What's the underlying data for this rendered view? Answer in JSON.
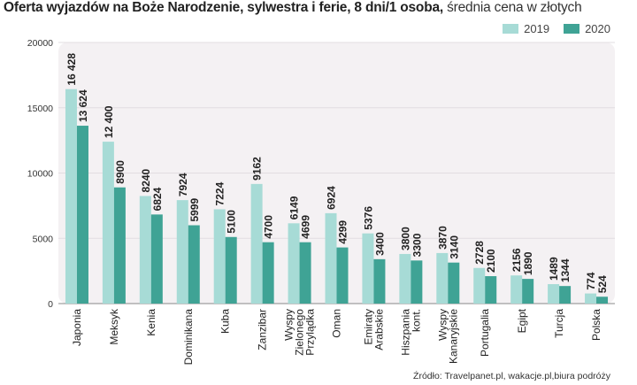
{
  "title_bold": "Oferta wyjazdów na Boże Narodzenie, sylwestra i ferie, 8 dni/1 osoba,",
  "title_regular": " średnia cena w złotych",
  "source": "Źródło: Travelpanet.pl, wakacje.pl,biura podróży",
  "colors": {
    "s2019": "#a7dbd6",
    "s2020": "#3fa395",
    "plot_bg": "#f4f1f3"
  },
  "chart_data": {
    "type": "bar",
    "categories": [
      "Japonia",
      "Meksyk",
      "Kenia",
      "Dominikana",
      "Kuba",
      "Zanzibar",
      "Wyspy Zielonego Przylądka",
      "Oman",
      "Emiraty Arabskie",
      "Hiszpania kont.",
      "Wyspy Kanaryjskie",
      "Portugalia",
      "Egipt",
      "Turcja",
      "Polska"
    ],
    "category_lines": [
      [
        "Japonia"
      ],
      [
        "Meksyk"
      ],
      [
        "Kenia"
      ],
      [
        "Dominikana"
      ],
      [
        "Kuba"
      ],
      [
        "Zanzibar"
      ],
      [
        "Wyspy",
        "Zielonego",
        "Przylądka"
      ],
      [
        "Oman"
      ],
      [
        "Emiraty",
        "Arabskie"
      ],
      [
        "Hiszpania",
        "kont."
      ],
      [
        "Wyspy",
        "Kanaryjskie"
      ],
      [
        "Portugalia"
      ],
      [
        "Egipt"
      ],
      [
        "Turcja"
      ],
      [
        "Polska"
      ]
    ],
    "series": [
      {
        "name": "2019",
        "values": [
          16428,
          12400,
          8240,
          7924,
          7224,
          9162,
          6149,
          6924,
          5376,
          3800,
          3870,
          2728,
          2156,
          1489,
          774
        ],
        "labels": [
          "16 428",
          "12 400",
          "8240",
          "7924",
          "7224",
          "9162",
          "6149",
          "6924",
          "5376",
          "3800",
          "3870",
          "2728",
          "2156",
          "1489",
          "774"
        ]
      },
      {
        "name": "2020",
        "values": [
          13624,
          8900,
          6824,
          5999,
          5100,
          4700,
          4699,
          4299,
          3400,
          3300,
          3140,
          2100,
          1890,
          1344,
          524
        ],
        "labels": [
          "13 624",
          "8900",
          "6824",
          "5999",
          "5100",
          "4700",
          "4699",
          "4299",
          "3400",
          "3300",
          "3140",
          "2100",
          "1890",
          "1344",
          "524"
        ]
      }
    ],
    "ylim": [
      0,
      20000
    ],
    "yticks": [
      0,
      5000,
      10000,
      15000,
      20000
    ],
    "ytick_labels": [
      "0",
      "5000",
      "10000",
      "15000",
      "20000"
    ],
    "legend_position": "top-right"
  }
}
